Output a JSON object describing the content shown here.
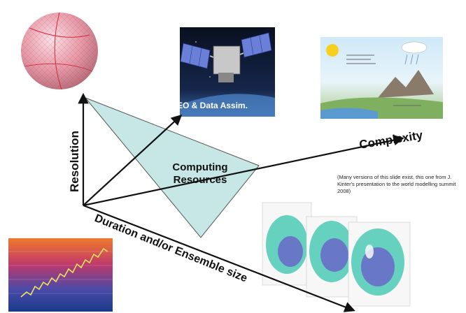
{
  "axes": {
    "resolution": "Resolution",
    "complexity": "Complexity",
    "duration": "Duration and/or Ensemble size"
  },
  "triangle": {
    "label_line1": "Computing",
    "label_line2": "Resources"
  },
  "eo_label": "EO & Data Assim.",
  "note": "(Many versions of this slide exist, this one from J. Kinter's presentation to the world modelling  summit 2008)",
  "colors": {
    "triangle_fill": "#c6e7e5",
    "arrow": "#111111",
    "globe": "#e89aa8"
  }
}
